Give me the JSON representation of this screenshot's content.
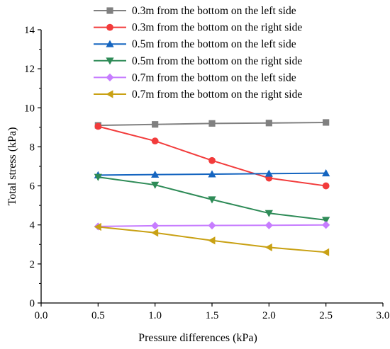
{
  "chart_data": {
    "type": "line",
    "xlabel": "Pressure differences (kPa)",
    "ylabel": "Total stress (kPa)",
    "xlim": [
      0.0,
      3.0
    ],
    "ylim": [
      0,
      14
    ],
    "x_ticks": [
      "0.0",
      "0.5",
      "1.0",
      "1.5",
      "2.0",
      "2.5",
      "3.0"
    ],
    "y_ticks": [
      "0",
      "2",
      "4",
      "6",
      "8",
      "10",
      "12",
      "14"
    ],
    "grid": false,
    "legend_position": "top-right",
    "x": [
      0.5,
      1.0,
      1.5,
      2.0,
      2.5
    ],
    "series": [
      {
        "name": "0.3m from the bottom on the left side",
        "color": "#808080",
        "marker": "square",
        "values": [
          9.1,
          9.15,
          9.2,
          9.22,
          9.25
        ]
      },
      {
        "name": "0.3m from the bottom on the right side",
        "color": "#f23b3b",
        "marker": "circle",
        "values": [
          9.05,
          8.3,
          7.3,
          6.4,
          6.0
        ]
      },
      {
        "name": "0.5m from the bottom on the left side",
        "color": "#1565c0",
        "marker": "triangle-up",
        "values": [
          6.55,
          6.58,
          6.6,
          6.63,
          6.65
        ]
      },
      {
        "name": "0.5m from the bottom on the right side",
        "color": "#2e8b57",
        "marker": "triangle-down",
        "values": [
          6.45,
          6.05,
          5.3,
          4.6,
          4.25
        ]
      },
      {
        "name": "0.7m from the bottom on the left side",
        "color": "#c77dff",
        "marker": "diamond",
        "values": [
          3.92,
          3.96,
          3.97,
          3.98,
          4.0
        ]
      },
      {
        "name": "0.7m from the bottom on the right side",
        "color": "#c9a114",
        "marker": "triangle-left",
        "values": [
          3.9,
          3.6,
          3.2,
          2.85,
          2.6
        ]
      }
    ]
  }
}
